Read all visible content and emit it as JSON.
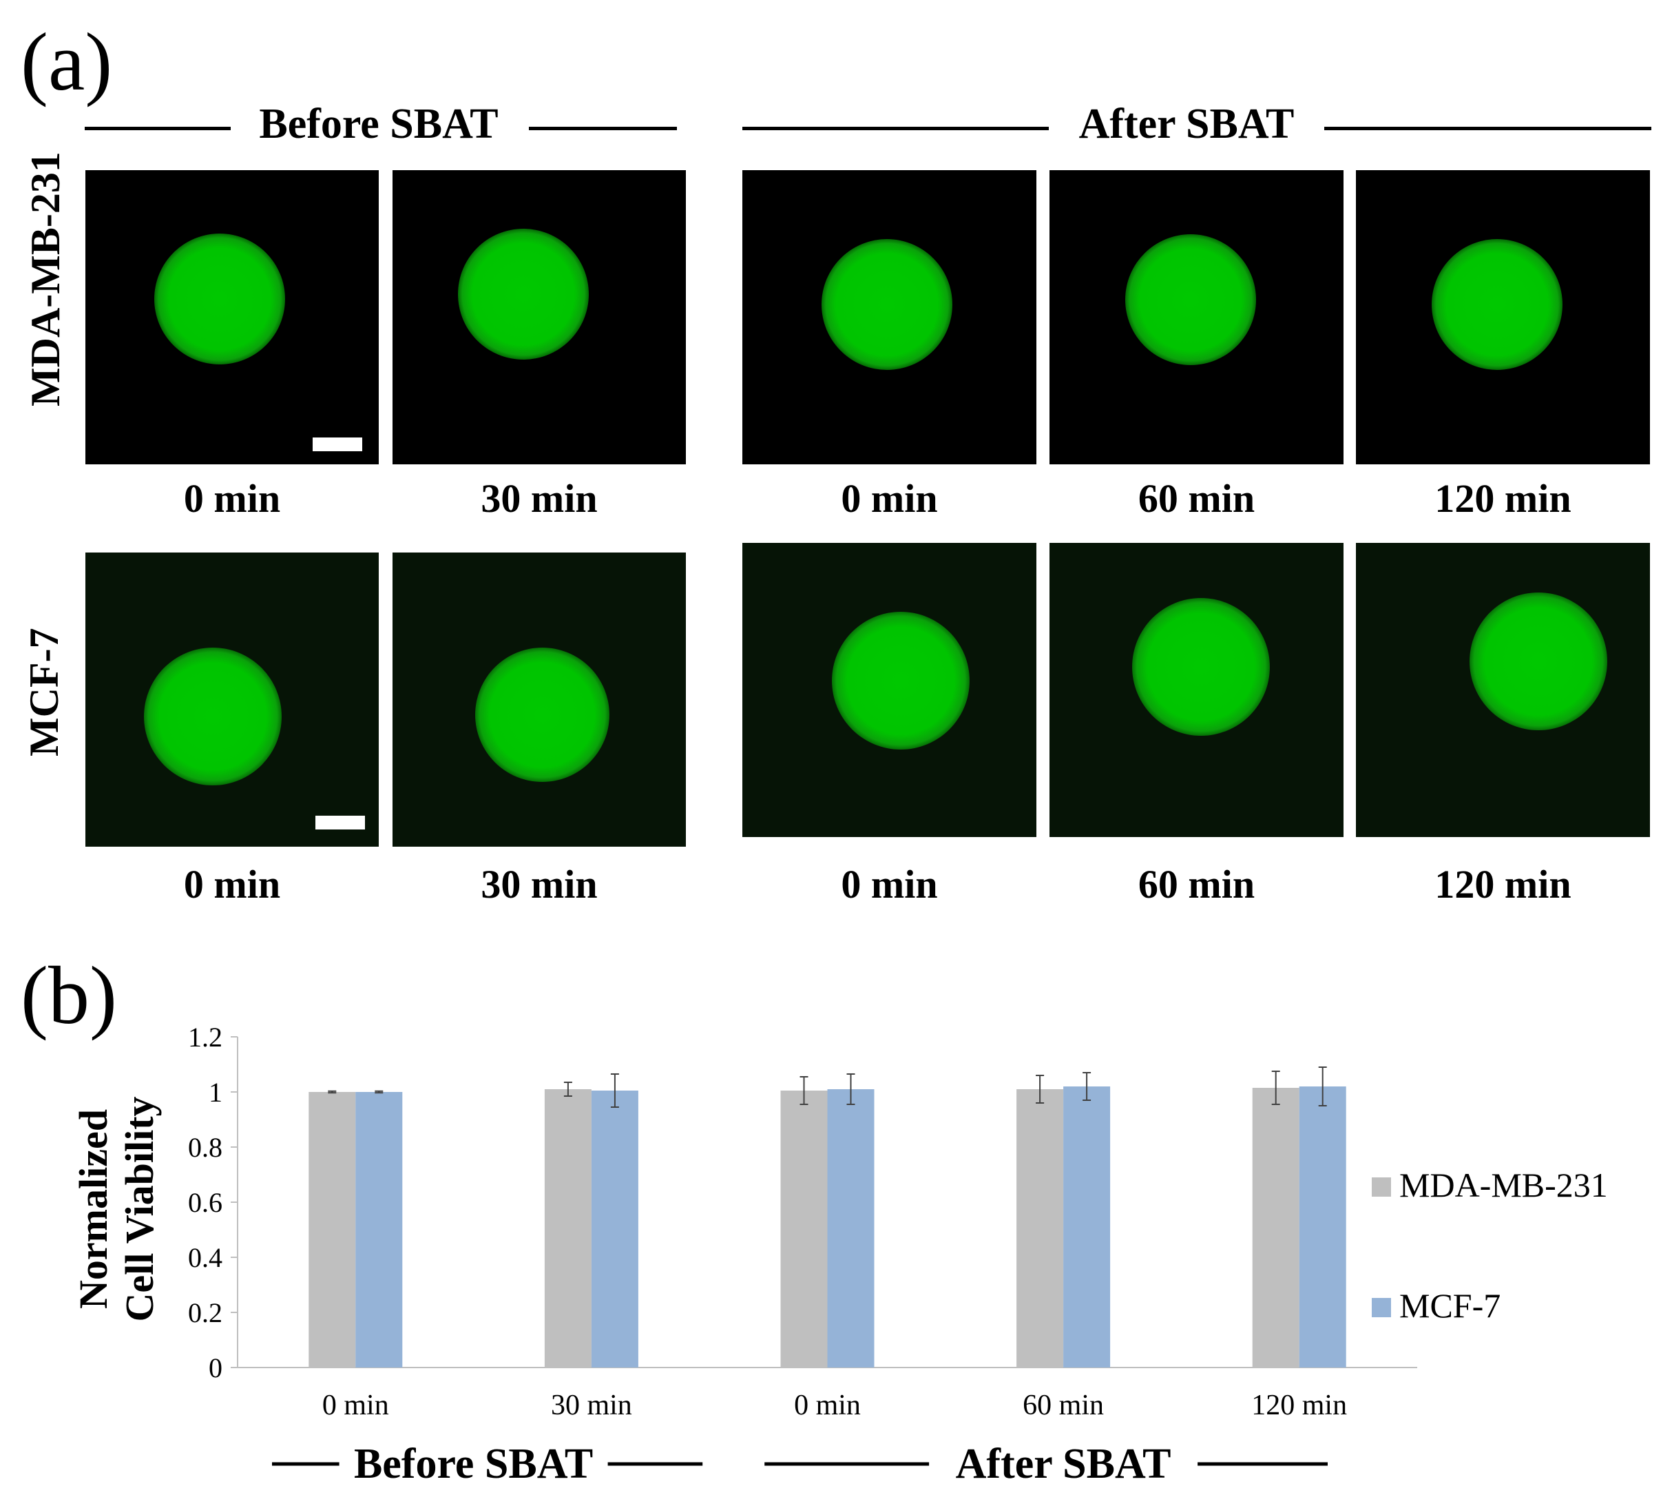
{
  "panel_a": {
    "letter": "(a)",
    "groups": [
      "Before SBAT",
      "After SBAT"
    ],
    "rows": [
      {
        "label": "MDA-MB-231",
        "times": [
          "0 min",
          "30 min",
          "0 min",
          "60 min",
          "120 min"
        ]
      },
      {
        "label": "MCF-7",
        "times": [
          "0 min",
          "30 min",
          "0 min",
          "60 min",
          "120 min"
        ]
      }
    ]
  },
  "panel_b": {
    "letter": "(b)"
  },
  "chart_data": {
    "type": "bar",
    "categories": [
      "0 min",
      "30 min",
      "0 min",
      "60 min",
      "120 min"
    ],
    "category_groups": [
      {
        "label": "Before SBAT",
        "categories": [
          0,
          1
        ]
      },
      {
        "label": "After SBAT",
        "categories": [
          2,
          3,
          4
        ]
      }
    ],
    "series": [
      {
        "name": "MDA-MB-231",
        "color": "#bfbfbf",
        "values": [
          1.0,
          1.01,
          1.005,
          1.01,
          1.015
        ],
        "errors": [
          0.003,
          0.025,
          0.05,
          0.05,
          0.06
        ]
      },
      {
        "name": "MCF-7",
        "color": "#95b3d7",
        "values": [
          1.0,
          1.005,
          1.01,
          1.02,
          1.02
        ],
        "errors": [
          0.003,
          0.06,
          0.055,
          0.05,
          0.07
        ]
      }
    ],
    "ylabel": [
      "Normalized",
      "Cell Viability"
    ],
    "xlabel": "",
    "ylim": [
      0,
      1.2
    ],
    "yticks": [
      0,
      0.2,
      0.4,
      0.6,
      0.8,
      1,
      1.2
    ],
    "ytick_labels": [
      "0",
      "0.2",
      "0.4",
      "0.6",
      "0.8",
      "1",
      "1.2"
    ],
    "grid": false,
    "legend": "right"
  }
}
